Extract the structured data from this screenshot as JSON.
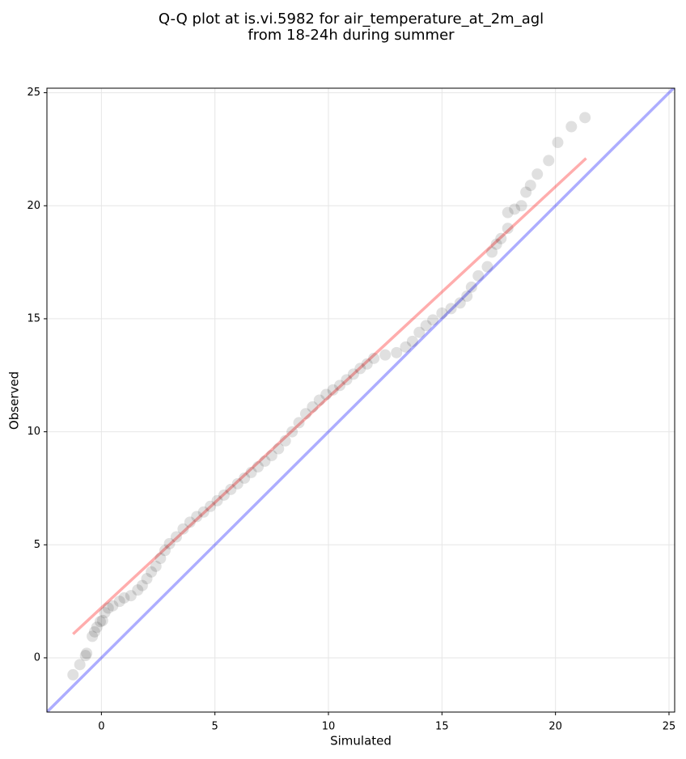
{
  "chart_data": {
    "type": "scatter",
    "title": [
      "Q-Q plot at is.vi.5982 for air_temperature_at_2m_agl",
      "from 18-24h during summer"
    ],
    "x_label": "Simulated",
    "y_label": "Observed",
    "xlim": [
      -2.4,
      25.25
    ],
    "ylim": [
      -2.4,
      25.2
    ],
    "xticks": [
      0,
      5,
      10,
      15,
      20,
      25
    ],
    "yticks": [
      0,
      5,
      10,
      15,
      20,
      25
    ],
    "grid": true,
    "point_color": "#000000",
    "point_alpha": 0.12,
    "x": [
      -1.25,
      -0.95,
      -0.7,
      -0.65,
      -0.4,
      -0.3,
      -0.2,
      -0.05,
      0.05,
      0.15,
      0.3,
      0.5,
      0.8,
      1.0,
      1.3,
      1.6,
      1.8,
      2.0,
      2.2,
      2.4,
      2.6,
      2.8,
      3.0,
      3.3,
      3.6,
      3.9,
      4.2,
      4.5,
      4.8,
      5.1,
      5.4,
      5.7,
      6.0,
      6.3,
      6.6,
      6.9,
      7.2,
      7.5,
      7.8,
      8.1,
      8.4,
      8.7,
      9.0,
      9.3,
      9.6,
      9.9,
      10.2,
      10.5,
      10.8,
      11.1,
      11.4,
      11.7,
      12.0,
      12.5,
      13.0,
      13.4,
      13.7,
      14.0,
      14.3,
      14.6,
      15.0,
      15.4,
      15.8,
      16.1,
      16.3,
      16.6,
      17.0,
      17.2,
      17.4,
      17.6,
      17.9,
      17.9,
      18.2,
      18.5,
      18.7,
      18.9,
      19.2,
      19.7,
      20.1,
      20.7,
      21.3
    ],
    "values": [
      -0.75,
      -0.3,
      0.1,
      0.2,
      0.95,
      1.15,
      1.35,
      1.6,
      1.65,
      2.0,
      2.2,
      2.3,
      2.5,
      2.65,
      2.75,
      3.0,
      3.2,
      3.5,
      3.8,
      4.05,
      4.4,
      4.75,
      5.05,
      5.35,
      5.7,
      6.0,
      6.25,
      6.45,
      6.7,
      6.95,
      7.2,
      7.45,
      7.7,
      7.95,
      8.2,
      8.45,
      8.7,
      8.95,
      9.25,
      9.6,
      10.0,
      10.4,
      10.8,
      11.1,
      11.4,
      11.65,
      11.85,
      12.05,
      12.3,
      12.55,
      12.8,
      13.0,
      13.25,
      13.4,
      13.5,
      13.75,
      14.0,
      14.4,
      14.7,
      14.95,
      15.25,
      15.45,
      15.7,
      16.0,
      16.4,
      16.9,
      17.3,
      17.95,
      18.3,
      18.55,
      19.0,
      19.7,
      19.85,
      20.0,
      20.6,
      20.9,
      21.4,
      22.0,
      22.8,
      23.5,
      23.9
    ],
    "lines": [
      {
        "x": [
          -1.25,
          21.35
        ],
        "values": [
          1.05,
          22.1
        ],
        "color": "#ff0000",
        "alpha": 0.32
      },
      {
        "x": [
          -2.4,
          25.25
        ],
        "values": [
          -2.4,
          25.25
        ],
        "color": "#0000ff",
        "alpha": 0.32
      }
    ]
  }
}
